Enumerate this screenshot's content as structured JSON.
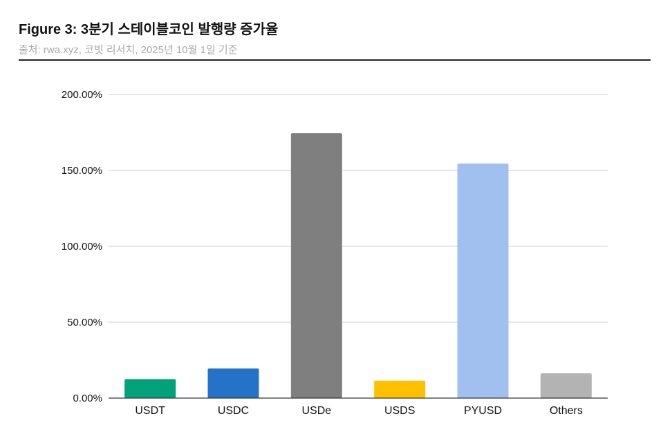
{
  "figure": {
    "title": "Figure 3: 3분기 스테이블코인 발행량 증가율",
    "source": "출처: rwa.xyz, 코빗 리서치, 2025년 10월 1일 기준"
  },
  "chart_data": {
    "type": "bar",
    "title": "",
    "xlabel": "",
    "ylabel": "",
    "categories": [
      "USDT",
      "USDC",
      "USDe",
      "USDS",
      "PYUSD",
      "Others"
    ],
    "values": [
      12.5,
      19.5,
      174.5,
      11.5,
      154.5,
      16.3
    ],
    "colors": [
      "#00a27a",
      "#2473c8",
      "#7f7f7f",
      "#ffc000",
      "#a2c0ef",
      "#b3b3b3"
    ],
    "ylim": [
      0,
      200
    ],
    "yticks": [
      0,
      50,
      100,
      150,
      200
    ],
    "ytick_labels": [
      "0.00%",
      "50.00%",
      "100.00%",
      "150.00%",
      "200.00%"
    ],
    "grid": true,
    "legend": "none"
  }
}
